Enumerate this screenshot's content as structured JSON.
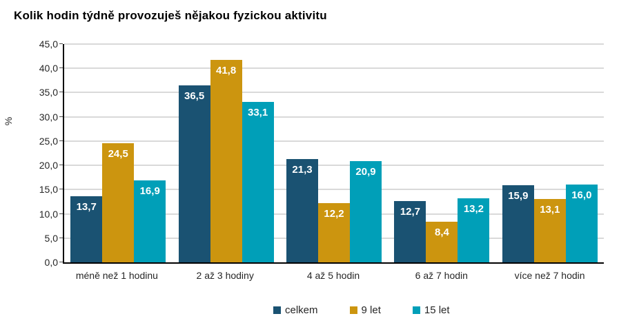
{
  "chart_data": {
    "type": "bar",
    "title": "Kolik hodin týdně provozuješ nějakou fyzickou aktivitu",
    "xlabel": "",
    "ylabel": "%",
    "categories": [
      "méně než 1 hodinu",
      "2 až 3 hodiny",
      "4 až 5 hodin",
      "6 až 7 hodin",
      "více než 7 hodin"
    ],
    "series": [
      {
        "name": "celkem",
        "color": "#1A5272",
        "values": [
          13.7,
          36.5,
          21.3,
          12.7,
          15.9
        ]
      },
      {
        "name": "9 let",
        "color": "#CC950F",
        "values": [
          24.5,
          41.8,
          12.2,
          8.4,
          13.1
        ]
      },
      {
        "name": "15 let",
        "color": "#009FB8",
        "values": [
          16.9,
          33.1,
          20.9,
          13.2,
          16.0
        ]
      }
    ],
    "data_labels": [
      [
        "13,7",
        "36,5",
        "21,3",
        "12,7",
        "15,9"
      ],
      [
        "24,5",
        "41,8",
        "12,2",
        "8,4",
        "13,1"
      ],
      [
        "16,9",
        "33,1",
        "20,9",
        "13,2",
        "16,0"
      ]
    ],
    "ylim": [
      0,
      45
    ],
    "ytick_step": 5,
    "ytick_labels": [
      "0,0",
      "5,0",
      "10,0",
      "15,0",
      "20,0",
      "25,0",
      "30,0",
      "35,0",
      "40,0",
      "45,0"
    ],
    "grid": true,
    "gridline_color": "#D9D9D9",
    "axis_color": "#000000",
    "legend_position": "bottom",
    "legend_labels": [
      "celkem",
      "9 let",
      "15 let"
    ]
  }
}
